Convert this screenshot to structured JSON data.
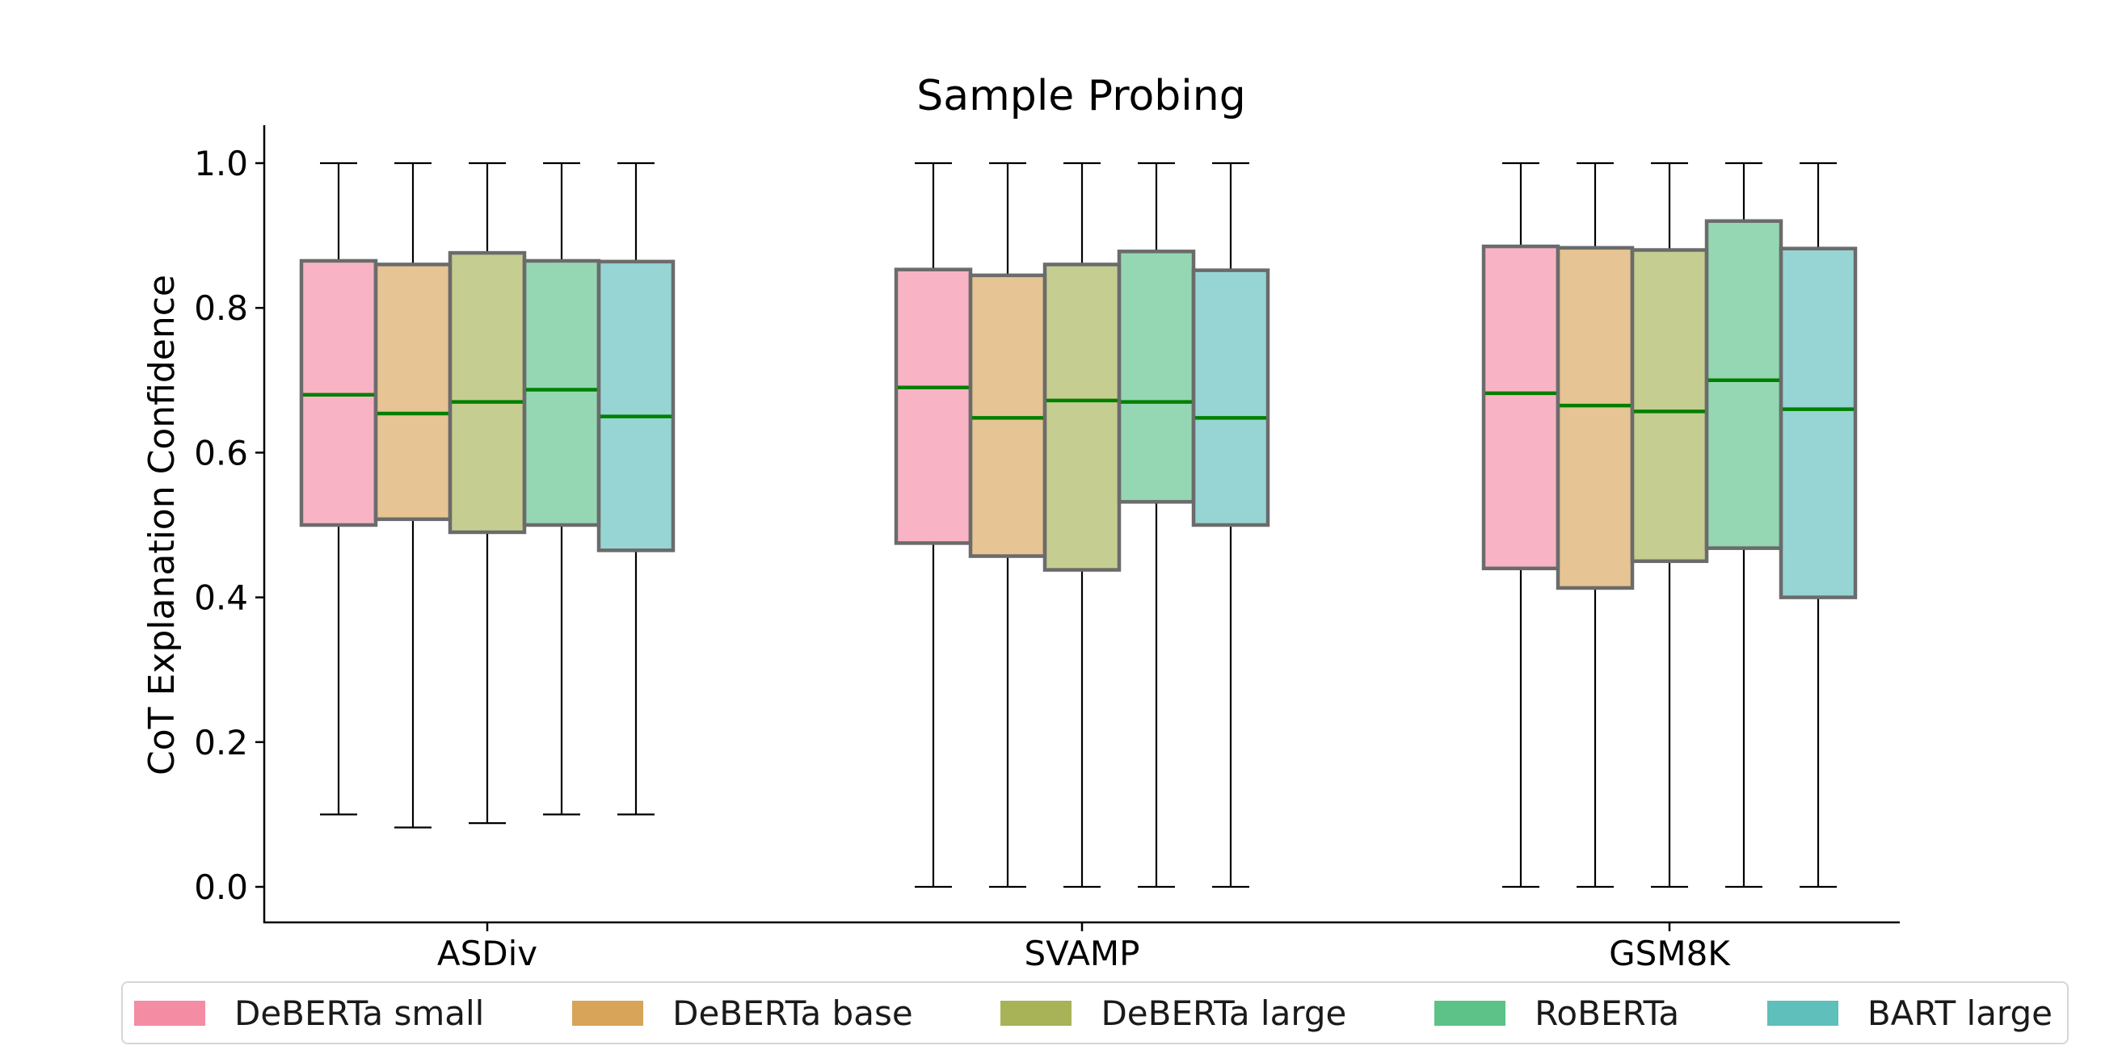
{
  "chart_data": {
    "type": "box",
    "title": "Sample Probing",
    "xlabel": "",
    "ylabel": "CoT Explanation Confidence",
    "ylim": [
      -0.05,
      1.05
    ],
    "yticks": [
      "0.0",
      "0.2",
      "0.4",
      "0.6",
      "0.8",
      "1.0"
    ],
    "categories": [
      "ASDiv",
      "SVAMP",
      "GSM8K"
    ],
    "grid": false,
    "legend_position": "bottom",
    "colors": {
      "median": "#008000",
      "box_edge": "#6b6b6b",
      "whisker": "#000000"
    },
    "series": [
      {
        "name": "DeBERTa small",
        "color": "#f48ca4",
        "stats": [
          {
            "min": 0.1,
            "q1": 0.5,
            "median": 0.68,
            "q3": 0.865,
            "max": 1.0
          },
          {
            "min": 0.0,
            "q1": 0.475,
            "median": 0.69,
            "q3": 0.853,
            "max": 1.0
          },
          {
            "min": 0.0,
            "q1": 0.44,
            "median": 0.682,
            "q3": 0.885,
            "max": 1.0
          }
        ]
      },
      {
        "name": "DeBERTa base",
        "color": "#d8a459",
        "stats": [
          {
            "min": 0.082,
            "q1": 0.508,
            "median": 0.654,
            "q3": 0.86,
            "max": 1.0
          },
          {
            "min": 0.0,
            "q1": 0.457,
            "median": 0.648,
            "q3": 0.845,
            "max": 1.0
          },
          {
            "min": 0.0,
            "q1": 0.413,
            "median": 0.665,
            "q3": 0.883,
            "max": 1.0
          }
        ]
      },
      {
        "name": "DeBERTa large",
        "color": "#a8b256",
        "stats": [
          {
            "min": 0.088,
            "q1": 0.49,
            "median": 0.67,
            "q3": 0.876,
            "max": 1.0
          },
          {
            "min": 0.0,
            "q1": 0.438,
            "median": 0.672,
            "q3": 0.86,
            "max": 1.0
          },
          {
            "min": 0.0,
            "q1": 0.45,
            "median": 0.657,
            "q3": 0.88,
            "max": 1.0
          }
        ]
      },
      {
        "name": "RoBERTa",
        "color": "#5cc288",
        "stats": [
          {
            "min": 0.1,
            "q1": 0.5,
            "median": 0.687,
            "q3": 0.865,
            "max": 1.0
          },
          {
            "min": 0.0,
            "q1": 0.532,
            "median": 0.67,
            "q3": 0.878,
            "max": 1.0
          },
          {
            "min": 0.0,
            "q1": 0.468,
            "median": 0.7,
            "q3": 0.92,
            "max": 1.0
          }
        ]
      },
      {
        "name": "BART large",
        "color": "#5ebfbb",
        "stats": [
          {
            "min": 0.1,
            "q1": 0.465,
            "median": 0.65,
            "q3": 0.864,
            "max": 1.0
          },
          {
            "min": 0.0,
            "q1": 0.5,
            "median": 0.648,
            "q3": 0.852,
            "max": 1.0
          },
          {
            "min": 0.0,
            "q1": 0.4,
            "median": 0.66,
            "q3": 0.882,
            "max": 1.0
          }
        ]
      }
    ]
  }
}
